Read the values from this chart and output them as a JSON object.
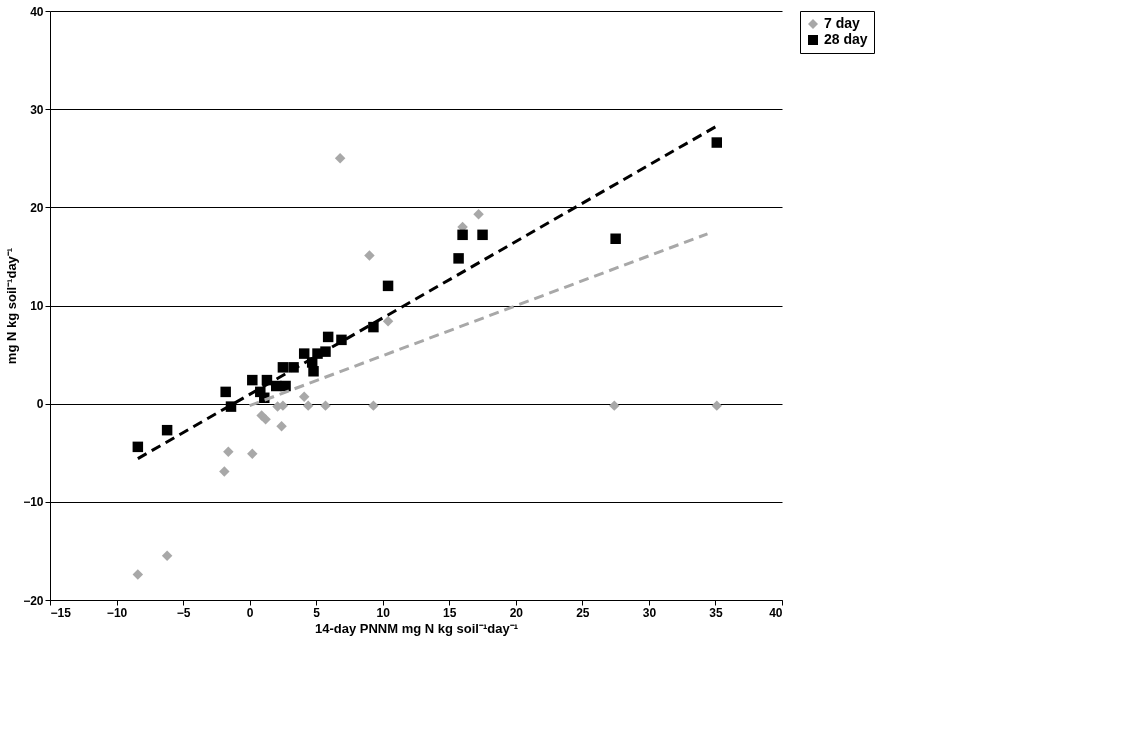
{
  "chart_data": {
    "type": "scatter",
    "xlabel": "14-day PNNM mg N kg soil⁻¹day⁻¹",
    "ylabel": "mg N kg soil⁻¹day⁻¹",
    "xlim": [
      -15,
      40
    ],
    "xticks": [
      -15,
      -10,
      -5,
      0,
      5,
      10,
      15,
      20,
      25,
      30,
      35,
      40
    ],
    "ylim": [
      -20,
      40
    ],
    "yticks": [
      -20,
      -10,
      0,
      10,
      20,
      30,
      40
    ],
    "grid": "y",
    "legend": "right",
    "series": [
      {
        "name": "7 day",
        "color": "#a8a8a8",
        "marker": "diamond",
        "x": [
          -8.4,
          -6.2,
          -1.9,
          -1.6,
          0.2,
          0.9,
          1.2,
          2.1,
          2.4,
          2.5,
          4.1,
          4.4,
          5.7,
          6.8,
          9.0,
          9.3,
          10.4,
          16.0,
          17.2,
          27.4,
          35.1
        ],
        "values": [
          -17.4,
          -15.5,
          -6.9,
          -4.9,
          -5.1,
          -1.2,
          -1.6,
          -0.3,
          -2.3,
          -0.2,
          0.7,
          -0.2,
          -0.2,
          25.0,
          15.1,
          -0.2,
          8.4,
          18.0,
          19.3,
          -0.2,
          -0.2
        ]
      },
      {
        "name": "28 day",
        "color": "#000000",
        "marker": "square",
        "x": [
          -8.4,
          -6.2,
          -1.8,
          -1.4,
          0.2,
          0.8,
          1.1,
          1.3,
          2.0,
          2.5,
          2.7,
          3.3,
          4.1,
          4.7,
          4.8,
          5.1,
          5.7,
          5.9,
          6.9,
          9.3,
          10.4,
          15.7,
          16.0,
          17.5,
          27.5,
          35.1
        ],
        "values": [
          -4.4,
          -2.7,
          1.2,
          -0.3,
          2.4,
          1.2,
          0.6,
          2.4,
          1.8,
          3.7,
          1.8,
          3.7,
          5.1,
          4.2,
          3.3,
          5.1,
          5.3,
          6.8,
          6.5,
          7.8,
          12.0,
          14.8,
          17.2,
          17.2,
          16.8,
          26.6
        ]
      },
      {
        "type": "line",
        "color": "#a8a8a8",
        "line_style": "dashed",
        "x": [
          0,
          34.4
        ],
        "values": [
          -0.2,
          17.3
        ]
      },
      {
        "type": "line",
        "color": "#000000",
        "line_style": "dashed",
        "x": [
          -8.4,
          35.0
        ],
        "values": [
          -5.6,
          28.2
        ]
      }
    ]
  }
}
